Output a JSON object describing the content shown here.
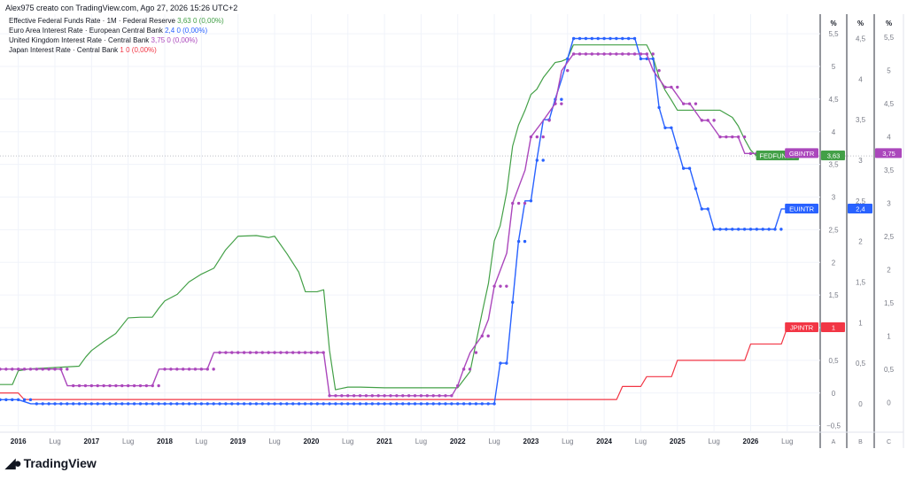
{
  "header": "Alex975 creato con TradingView.com, Ago 27, 2026 15:26 UTC+2",
  "brand": "TradingView",
  "colors": {
    "fed": "#43a047",
    "eur": "#2962ff",
    "gb": "#ab47bc",
    "jp": "#f23645"
  },
  "legend": [
    {
      "name": "Effective Federal Funds Rate · 1M · Federal Reserve",
      "value": "3,63",
      "change": "0 (0,00%)",
      "color": "#43a047"
    },
    {
      "name": "Euro Area Interest Rate · European Central Bank",
      "value": "2,4",
      "change": "0 (0,00%)",
      "color": "#2962ff"
    },
    {
      "name": "United Kingdom Interest Rate · Central Bank",
      "value": "3,75",
      "change": "0 (0,00%)",
      "color": "#ab47bc"
    },
    {
      "name": "Japan Interest Rate · Central Bank",
      "value": "1",
      "change": "0 (0,00%)",
      "color": "#f23645"
    }
  ],
  "chart_data": {
    "type": "line",
    "x_ticks": [
      "2016",
      "Lug",
      "2017",
      "Lug",
      "2018",
      "Lug",
      "2019",
      "Lug",
      "2020",
      "Lug",
      "2021",
      "Lug",
      "2022",
      "Lug",
      "2023",
      "Lug",
      "2024",
      "Lug",
      "2025",
      "Lug",
      "2026",
      "Lug"
    ],
    "x_tick_dates": [
      2016.0,
      2016.5,
      2017.0,
      2017.5,
      2018.0,
      2018.5,
      2019.0,
      2019.5,
      2020.0,
      2020.5,
      2021.0,
      2021.5,
      2022.0,
      2022.5,
      2023.0,
      2023.5,
      2024.0,
      2024.5,
      2025.0,
      2025.5,
      2026.0,
      2026.5
    ],
    "xlim": [
      2015.75,
      2026.95
    ],
    "axes": [
      {
        "id": "A",
        "unit": "%",
        "ticks": [
          "5,5",
          "5",
          "4,5",
          "4",
          "3,5",
          "3",
          "2,5",
          "2",
          "1,5",
          "1",
          "0,5",
          "0",
          "−0,5"
        ],
        "tick_values": [
          5.5,
          5,
          4.5,
          4,
          3.5,
          3,
          2.5,
          2,
          1.5,
          1,
          0.5,
          0,
          -0.5
        ],
        "ylim": [
          -0.6,
          5.8
        ]
      },
      {
        "id": "B",
        "unit": "%",
        "ticks": [
          "4,5",
          "4",
          "3,5",
          "3",
          "2,5",
          "2",
          "1,5",
          "1",
          "0,5",
          "0"
        ],
        "tick_values": [
          4.5,
          4,
          3.5,
          3,
          2.5,
          2,
          1.5,
          1,
          0.5,
          0
        ],
        "ylim": [
          -0.35,
          4.8
        ]
      },
      {
        "id": "C",
        "unit": "%",
        "ticks": [
          "5,5",
          "5",
          "4,5",
          "4",
          "3,5",
          "3",
          "2,5",
          "2",
          "1,5",
          "1",
          "0,5",
          "0"
        ],
        "tick_values": [
          5.5,
          5,
          4.5,
          4,
          3.5,
          3,
          2.5,
          2,
          1.5,
          1,
          0.5,
          0
        ],
        "ylim": [
          -0.45,
          5.85
        ]
      }
    ],
    "series": [
      {
        "name": "FEDFUNDS",
        "axis": "A",
        "color": "#43a047",
        "markers": false,
        "last": "3,63",
        "points": [
          [
            2015.75,
            0.13
          ],
          [
            2015.92,
            0.13
          ],
          [
            2016.0,
            0.34
          ],
          [
            2016.17,
            0.37
          ],
          [
            2016.5,
            0.39
          ],
          [
            2016.83,
            0.41
          ],
          [
            2016.92,
            0.55
          ],
          [
            2017.0,
            0.65
          ],
          [
            2017.17,
            0.79
          ],
          [
            2017.33,
            0.91
          ],
          [
            2017.5,
            1.15
          ],
          [
            2017.67,
            1.16
          ],
          [
            2017.83,
            1.16
          ],
          [
            2017.92,
            1.3
          ],
          [
            2018.0,
            1.41
          ],
          [
            2018.17,
            1.51
          ],
          [
            2018.33,
            1.7
          ],
          [
            2018.5,
            1.82
          ],
          [
            2018.67,
            1.91
          ],
          [
            2018.83,
            2.19
          ],
          [
            2019.0,
            2.4
          ],
          [
            2019.25,
            2.41
          ],
          [
            2019.42,
            2.38
          ],
          [
            2019.5,
            2.4
          ],
          [
            2019.67,
            2.13
          ],
          [
            2019.83,
            1.85
          ],
          [
            2019.92,
            1.55
          ],
          [
            2020.08,
            1.55
          ],
          [
            2020.17,
            1.58
          ],
          [
            2020.25,
            0.65
          ],
          [
            2020.33,
            0.05
          ],
          [
            2020.5,
            0.09
          ],
          [
            2020.67,
            0.09
          ],
          [
            2021.0,
            0.08
          ],
          [
            2021.5,
            0.08
          ],
          [
            2021.75,
            0.08
          ],
          [
            2022.0,
            0.08
          ],
          [
            2022.17,
            0.33
          ],
          [
            2022.25,
            0.77
          ],
          [
            2022.33,
            1.21
          ],
          [
            2022.42,
            1.68
          ],
          [
            2022.5,
            2.33
          ],
          [
            2022.58,
            2.56
          ],
          [
            2022.67,
            3.08
          ],
          [
            2022.75,
            3.78
          ],
          [
            2022.83,
            4.1
          ],
          [
            2022.92,
            4.33
          ],
          [
            2023.0,
            4.57
          ],
          [
            2023.08,
            4.65
          ],
          [
            2023.17,
            4.83
          ],
          [
            2023.33,
            5.06
          ],
          [
            2023.42,
            5.08
          ],
          [
            2023.5,
            5.12
          ],
          [
            2023.58,
            5.33
          ],
          [
            2023.75,
            5.33
          ],
          [
            2024.5,
            5.33
          ],
          [
            2024.58,
            5.33
          ],
          [
            2024.67,
            5.13
          ],
          [
            2024.75,
            4.83
          ],
          [
            2024.83,
            4.64
          ],
          [
            2024.92,
            4.48
          ],
          [
            2025.0,
            4.33
          ],
          [
            2025.58,
            4.33
          ],
          [
            2025.75,
            4.22
          ],
          [
            2025.83,
            4.09
          ],
          [
            2025.92,
            3.88
          ],
          [
            2026.0,
            3.72
          ],
          [
            2026.08,
            3.63
          ],
          [
            2026.55,
            3.63
          ]
        ]
      },
      {
        "name": "EUINTR",
        "axis": "B",
        "color": "#2962ff",
        "markers": true,
        "last": "2,4",
        "points": [
          [
            2015.75,
            0.05
          ],
          [
            2016.0,
            0.05
          ],
          [
            2016.17,
            0.0
          ],
          [
            2022.5,
            0.0
          ],
          [
            2022.58,
            0.5
          ],
          [
            2022.67,
            0.5
          ],
          [
            2022.75,
            1.25
          ],
          [
            2022.83,
            2.0
          ],
          [
            2022.92,
            2.5
          ],
          [
            2023.0,
            2.5
          ],
          [
            2023.08,
            3.0
          ],
          [
            2023.17,
            3.5
          ],
          [
            2023.25,
            3.5
          ],
          [
            2023.33,
            3.75
          ],
          [
            2023.42,
            4.0
          ],
          [
            2023.5,
            4.25
          ],
          [
            2023.58,
            4.5
          ],
          [
            2024.42,
            4.5
          ],
          [
            2024.5,
            4.25
          ],
          [
            2024.67,
            4.25
          ],
          [
            2024.75,
            3.65
          ],
          [
            2024.83,
            3.4
          ],
          [
            2024.92,
            3.4
          ],
          [
            2025.0,
            3.15
          ],
          [
            2025.08,
            2.9
          ],
          [
            2025.17,
            2.9
          ],
          [
            2025.25,
            2.65
          ],
          [
            2025.33,
            2.4
          ],
          [
            2025.42,
            2.4
          ],
          [
            2025.5,
            2.15
          ],
          [
            2026.33,
            2.15
          ],
          [
            2026.42,
            2.4
          ],
          [
            2026.55,
            2.4
          ]
        ]
      },
      {
        "name": "GBINTR",
        "axis": "C",
        "color": "#ab47bc",
        "markers": true,
        "last": "3,75",
        "points": [
          [
            2015.75,
            0.5
          ],
          [
            2016.58,
            0.5
          ],
          [
            2016.67,
            0.25
          ],
          [
            2017.83,
            0.25
          ],
          [
            2017.92,
            0.5
          ],
          [
            2018.58,
            0.5
          ],
          [
            2018.67,
            0.75
          ],
          [
            2020.17,
            0.75
          ],
          [
            2020.25,
            0.1
          ],
          [
            2021.92,
            0.1
          ],
          [
            2022.0,
            0.25
          ],
          [
            2022.08,
            0.5
          ],
          [
            2022.17,
            0.75
          ],
          [
            2022.33,
            1.0
          ],
          [
            2022.42,
            1.25
          ],
          [
            2022.5,
            1.75
          ],
          [
            2022.67,
            2.25
          ],
          [
            2022.75,
            3.0
          ],
          [
            2022.92,
            3.5
          ],
          [
            2023.0,
            4.0
          ],
          [
            2023.17,
            4.25
          ],
          [
            2023.33,
            4.5
          ],
          [
            2023.42,
            5.0
          ],
          [
            2023.58,
            5.25
          ],
          [
            2024.58,
            5.25
          ],
          [
            2024.67,
            5.0
          ],
          [
            2024.83,
            4.75
          ],
          [
            2024.92,
            4.75
          ],
          [
            2025.08,
            4.5
          ],
          [
            2025.17,
            4.5
          ],
          [
            2025.33,
            4.25
          ],
          [
            2025.42,
            4.25
          ],
          [
            2025.58,
            4.0
          ],
          [
            2025.83,
            4.0
          ],
          [
            2025.92,
            3.75
          ],
          [
            2026.55,
            3.75
          ]
        ]
      },
      {
        "name": "JPINTR",
        "axis": "A",
        "color": "#f23645",
        "markers": false,
        "last": "1",
        "points": [
          [
            2015.75,
            0.0
          ],
          [
            2016.0,
            0.0
          ],
          [
            2016.08,
            -0.1
          ],
          [
            2024.17,
            -0.1
          ],
          [
            2024.25,
            0.1
          ],
          [
            2024.5,
            0.1
          ],
          [
            2024.58,
            0.25
          ],
          [
            2024.92,
            0.25
          ],
          [
            2025.0,
            0.5
          ],
          [
            2025.92,
            0.5
          ],
          [
            2026.0,
            0.75
          ],
          [
            2026.42,
            0.75
          ],
          [
            2026.5,
            1.0
          ],
          [
            2026.55,
            1.0
          ]
        ]
      }
    ],
    "panes": [
      "A",
      "B",
      "C"
    ],
    "grid": true
  }
}
